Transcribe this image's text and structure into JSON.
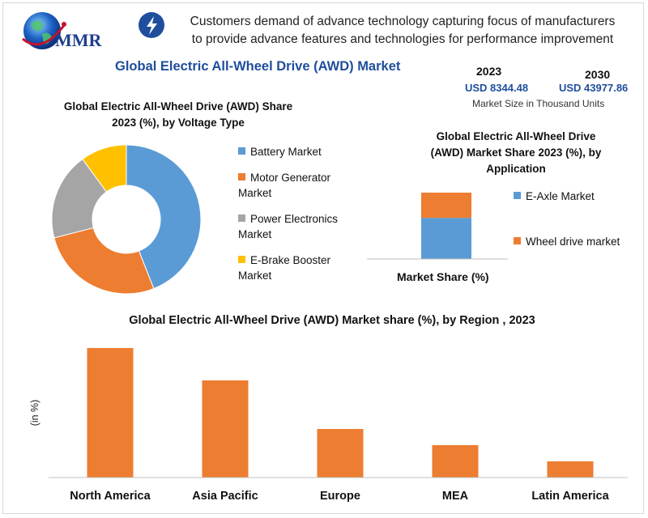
{
  "header": {
    "logo_text": "MMR",
    "headline_line1": "Customers demand of advance technology capturing focus of manufacturers",
    "headline_line2": "to provide advance features and technologies for performance improvement",
    "main_title": "Global Electric All-Wheel Drive (AWD) Market"
  },
  "market_size": {
    "year_start": "2023",
    "value_start": "USD 8344.48",
    "year_end": "2030",
    "value_end": "USD 43977.86",
    "note": "Market Size in Thousand Units"
  },
  "colors": {
    "blue": "#5b9bd5",
    "orange": "#ed7d31",
    "gray": "#a5a5a5",
    "yellow": "#ffc000",
    "title_blue": "#1f4e9c"
  },
  "chart_data": [
    {
      "type": "pie",
      "title_line1": "Global Electric All-Wheel Drive (AWD) Share",
      "title_line2": "2023 (%), by Voltage Type",
      "labels": [
        "Battery Market",
        "Motor Generator Market",
        "Power Electronics Market",
        "E-Brake Booster Market"
      ],
      "values": [
        44,
        27,
        19,
        10
      ],
      "colors": [
        "#5b9bd5",
        "#ed7d31",
        "#a5a5a5",
        "#ffc000"
      ],
      "legend_position": "right"
    },
    {
      "type": "bar",
      "stacked": true,
      "title_line1": "Global  Electric All-Wheel Drive",
      "title_line2": "(AWD)  Market Share 2023 (%), by",
      "title_line3": "Application",
      "categories": [
        "Market Share (%)"
      ],
      "series": [
        {
          "name": "E-Axle Market",
          "values": [
            62
          ],
          "color": "#5b9bd5"
        },
        {
          "name": "Wheel drive market",
          "values": [
            38
          ],
          "color": "#ed7d31"
        }
      ],
      "legend_position": "right"
    },
    {
      "type": "bar",
      "title": "Global Electric All-Wheel Drive (AWD)  Market share (%), by Region , 2023",
      "ylabel": "(in %)",
      "categories": [
        "North America",
        "Asia Pacific",
        "Europe",
        "MEA",
        "Latin America"
      ],
      "values": [
        40,
        30,
        15,
        10,
        5
      ],
      "ylim": [
        0,
        40
      ],
      "color": "#ed7d31",
      "grid": false
    }
  ]
}
